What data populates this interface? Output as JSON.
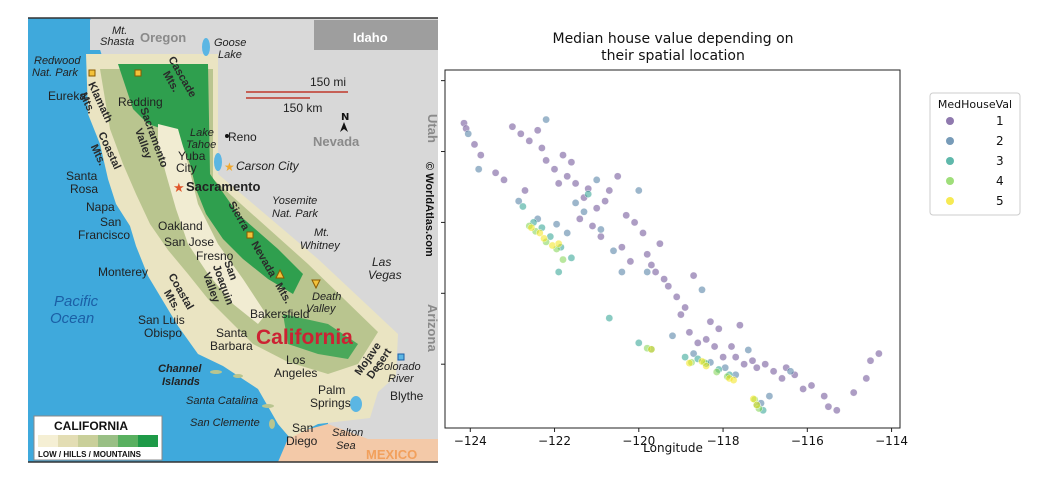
{
  "map": {
    "states": {
      "oregon": "Oregon",
      "idaho": "Idaho",
      "nevada": "Nevada",
      "utah": "Utah",
      "arizona": "Arizona",
      "mexico": "MEXICO",
      "california": "California"
    },
    "ocean": [
      "Pacific",
      "Ocean"
    ],
    "credit": "© WorldAtlas.com",
    "scale": {
      "mi": "150 mi",
      "km": "150 km"
    },
    "north": "N",
    "legend": {
      "title": "CALIFORNIA",
      "caption": "LOW / HILLS / MOUNTAINS",
      "colors": [
        "#f5efd4",
        "#e3ddb4",
        "#c9cf9a",
        "#99bf85",
        "#59b060",
        "#1e9a48"
      ]
    },
    "colors": {
      "ocean": "#3fa9dc",
      "land": "#d8d8d8",
      "mexico": "#f3c9a8",
      "california_label": "#cc2233",
      "lake": "#5bb6e3"
    },
    "cities": {
      "eureka": "Eureka",
      "redding": "Redding",
      "reno": "Reno",
      "carson_city": "Carson City",
      "yuba": [
        "Yuba",
        "City"
      ],
      "sacramento": "Sacramento",
      "santa_rosa": [
        "Santa",
        "Rosa"
      ],
      "napa": "Napa",
      "san_francisco": [
        "San",
        "Francisco"
      ],
      "oakland": "Oakland",
      "san_jose": "San Jose",
      "fresno": "Fresno",
      "monterey": "Monterey",
      "san_luis_obispo": [
        "San Luis",
        "Obispo"
      ],
      "bakersfield": "Bakersfield",
      "santa_barbara": [
        "Santa",
        "Barbara"
      ],
      "los_angeles": [
        "Los",
        "Angeles"
      ],
      "palm_springs": [
        "Palm",
        "Springs"
      ],
      "san_diego": [
        "San",
        "Diego"
      ],
      "las_vegas": [
        "Las",
        "Vegas"
      ],
      "blythe": "Blythe"
    },
    "features": {
      "mt_shasta": [
        "Mt.",
        "Shasta"
      ],
      "goose_lake": [
        "Goose",
        "Lake"
      ],
      "redwood": [
        "Redwood",
        "Nat. Park"
      ],
      "lake_tahoe": [
        "Lake",
        "Tahoe"
      ],
      "yosemite": [
        "Yosemite",
        "Nat. Park"
      ],
      "mt_whitney": [
        "Mt.",
        "Whitney"
      ],
      "death_valley": [
        "Death",
        "Valley"
      ],
      "channel_islands": [
        "Channel",
        "Islands"
      ],
      "santa_catalina": "Santa Catalina",
      "san_clemente": "San Clemente",
      "salton_sea": [
        "Salton",
        "Sea"
      ],
      "colorado_river": [
        "Colorado",
        "River"
      ]
    },
    "ranges": {
      "klamath": [
        "Klamath",
        "Mts."
      ],
      "cascade": [
        "Cascade",
        "Mts."
      ],
      "coastal_north": [
        "Coastal",
        "Mts."
      ],
      "sacramento_valley": [
        "Sacramento",
        "Valley"
      ],
      "sierra": [
        "Sierra",
        "Nevada",
        "Mts."
      ],
      "san_joaquin": [
        "San",
        "Joaquin",
        "Valley"
      ],
      "coastal_south": [
        "Coastal",
        "Mts."
      ],
      "mojave": [
        "Mojave",
        "Desert"
      ]
    }
  },
  "chart_data": {
    "type": "scatter",
    "title": "Median house value depending on\ntheir spatial location",
    "xlabel": "Longitude",
    "ylabel": "",
    "xlim": [
      -124.6,
      -113.8
    ],
    "ylim": [
      32.2,
      42.3
    ],
    "xticks": [
      -124,
      -122,
      -120,
      -118,
      -116,
      -114
    ],
    "yticks_shown": false,
    "grid": false,
    "legend_position": "outside-right",
    "legend": {
      "title": "MedHouseVal",
      "entries": [
        "1",
        "2",
        "3",
        "4",
        "5"
      ]
    },
    "colors": {
      "1": "#6a4c93",
      "2": "#4a7aa0",
      "3": "#2aa08f",
      "4": "#7fd34e",
      "5": "#f3e31a"
    },
    "point_alpha": 0.55,
    "series": [
      {
        "name": "1",
        "points": [
          [
            -124.15,
            40.8
          ],
          [
            -124.1,
            40.65
          ],
          [
            -123.9,
            40.2
          ],
          [
            -123.75,
            39.9
          ],
          [
            -123.4,
            39.4
          ],
          [
            -123.2,
            39.2
          ],
          [
            -123.0,
            40.7
          ],
          [
            -122.8,
            40.5
          ],
          [
            -122.6,
            40.3
          ],
          [
            -122.4,
            40.6
          ],
          [
            -122.3,
            40.1
          ],
          [
            -122.2,
            39.75
          ],
          [
            -122.0,
            39.5
          ],
          [
            -121.9,
            39.1
          ],
          [
            -121.7,
            39.3
          ],
          [
            -121.6,
            39.7
          ],
          [
            -121.5,
            39.1
          ],
          [
            -121.3,
            38.7
          ],
          [
            -121.2,
            38.95
          ],
          [
            -121.0,
            38.4
          ],
          [
            -120.8,
            38.6
          ],
          [
            -120.7,
            38.9
          ],
          [
            -120.5,
            39.3
          ],
          [
            -120.3,
            38.2
          ],
          [
            -120.1,
            38.0
          ],
          [
            -119.9,
            37.7
          ],
          [
            -119.8,
            37.1
          ],
          [
            -119.7,
            36.8
          ],
          [
            -119.6,
            36.6
          ],
          [
            -119.4,
            36.4
          ],
          [
            -119.3,
            36.2
          ],
          [
            -119.1,
            35.9
          ],
          [
            -119.0,
            35.4
          ],
          [
            -118.9,
            35.6
          ],
          [
            -118.8,
            34.9
          ],
          [
            -118.6,
            34.6
          ],
          [
            -118.4,
            34.7
          ],
          [
            -118.2,
            34.5
          ],
          [
            -118.0,
            34.2
          ],
          [
            -117.7,
            34.2
          ],
          [
            -117.5,
            34.0
          ],
          [
            -117.3,
            34.1
          ],
          [
            -117.2,
            33.9
          ],
          [
            -117.0,
            34.0
          ],
          [
            -116.8,
            33.8
          ],
          [
            -116.6,
            33.6
          ],
          [
            -116.5,
            33.9
          ],
          [
            -116.3,
            33.7
          ],
          [
            -116.1,
            33.3
          ],
          [
            -115.9,
            33.4
          ],
          [
            -115.6,
            33.1
          ],
          [
            -115.5,
            32.8
          ],
          [
            -115.3,
            32.7
          ],
          [
            -114.9,
            33.2
          ],
          [
            -114.6,
            33.6
          ],
          [
            -114.5,
            34.1
          ],
          [
            -114.3,
            34.3
          ],
          [
            -120.4,
            37.3
          ],
          [
            -120.2,
            36.9
          ],
          [
            -119.5,
            37.4
          ],
          [
            -118.7,
            36.5
          ],
          [
            -118.3,
            35.2
          ],
          [
            -118.1,
            35.0
          ],
          [
            -117.6,
            35.1
          ],
          [
            -117.8,
            34.5
          ],
          [
            -121.8,
            39.9
          ],
          [
            -122.7,
            38.9
          ],
          [
            -121.4,
            38.1
          ],
          [
            -120.9,
            37.6
          ],
          [
            -121.1,
            37.9
          ]
        ]
      },
      {
        "name": "2",
        "points": [
          [
            -124.05,
            40.5
          ],
          [
            -123.8,
            39.5
          ],
          [
            -122.85,
            38.6
          ],
          [
            -122.4,
            38.1
          ],
          [
            -121.95,
            37.95
          ],
          [
            -121.5,
            38.55
          ],
          [
            -121.3,
            38.3
          ],
          [
            -120.9,
            37.8
          ],
          [
            -120.6,
            37.2
          ],
          [
            -120.4,
            36.6
          ],
          [
            -119.8,
            36.6
          ],
          [
            -119.2,
            34.8
          ],
          [
            -118.7,
            34.3
          ],
          [
            -118.3,
            34.05
          ],
          [
            -117.95,
            33.9
          ],
          [
            -117.7,
            33.7
          ],
          [
            -117.1,
            32.9
          ],
          [
            -116.9,
            33.1
          ],
          [
            -116.4,
            33.8
          ],
          [
            -122.2,
            40.9
          ],
          [
            -121.7,
            37.7
          ],
          [
            -121.0,
            39.2
          ],
          [
            -120.0,
            38.9
          ],
          [
            -118.5,
            36.1
          ],
          [
            -117.4,
            34.4
          ]
        ]
      },
      {
        "name": "3",
        "points": [
          [
            -122.75,
            38.45
          ],
          [
            -122.5,
            38.0
          ],
          [
            -122.3,
            37.85
          ],
          [
            -122.1,
            37.6
          ],
          [
            -121.85,
            37.3
          ],
          [
            -121.9,
            36.6
          ],
          [
            -121.6,
            37.0
          ],
          [
            -120.7,
            35.3
          ],
          [
            -120.0,
            34.6
          ],
          [
            -119.7,
            34.42
          ],
          [
            -118.9,
            34.2
          ],
          [
            -118.4,
            34.02
          ],
          [
            -118.1,
            33.85
          ],
          [
            -117.85,
            33.7
          ],
          [
            -117.2,
            32.85
          ],
          [
            -117.05,
            32.7
          ],
          [
            -121.2,
            38.8
          ],
          [
            -118.6,
            34.15
          ]
        ]
      },
      {
        "name": "4",
        "points": [
          [
            -122.6,
            37.9
          ],
          [
            -122.45,
            37.75
          ],
          [
            -122.2,
            37.45
          ],
          [
            -121.95,
            37.25
          ],
          [
            -121.8,
            36.95
          ],
          [
            -119.8,
            34.45
          ],
          [
            -118.75,
            34.05
          ],
          [
            -118.45,
            34.05
          ],
          [
            -118.15,
            33.78
          ],
          [
            -117.9,
            33.65
          ],
          [
            -117.25,
            33.0
          ],
          [
            -117.15,
            32.75
          ]
        ]
      },
      {
        "name": "5",
        "points": [
          [
            -122.55,
            37.85
          ],
          [
            -122.35,
            37.7
          ],
          [
            -122.25,
            37.55
          ],
          [
            -122.05,
            37.35
          ],
          [
            -121.9,
            37.4
          ],
          [
            -119.7,
            34.42
          ],
          [
            -118.8,
            34.03
          ],
          [
            -118.5,
            34.08
          ],
          [
            -118.4,
            33.95
          ],
          [
            -117.85,
            33.6
          ],
          [
            -117.75,
            33.55
          ],
          [
            -117.28,
            33.02
          ],
          [
            -117.2,
            32.85
          ]
        ]
      }
    ]
  }
}
